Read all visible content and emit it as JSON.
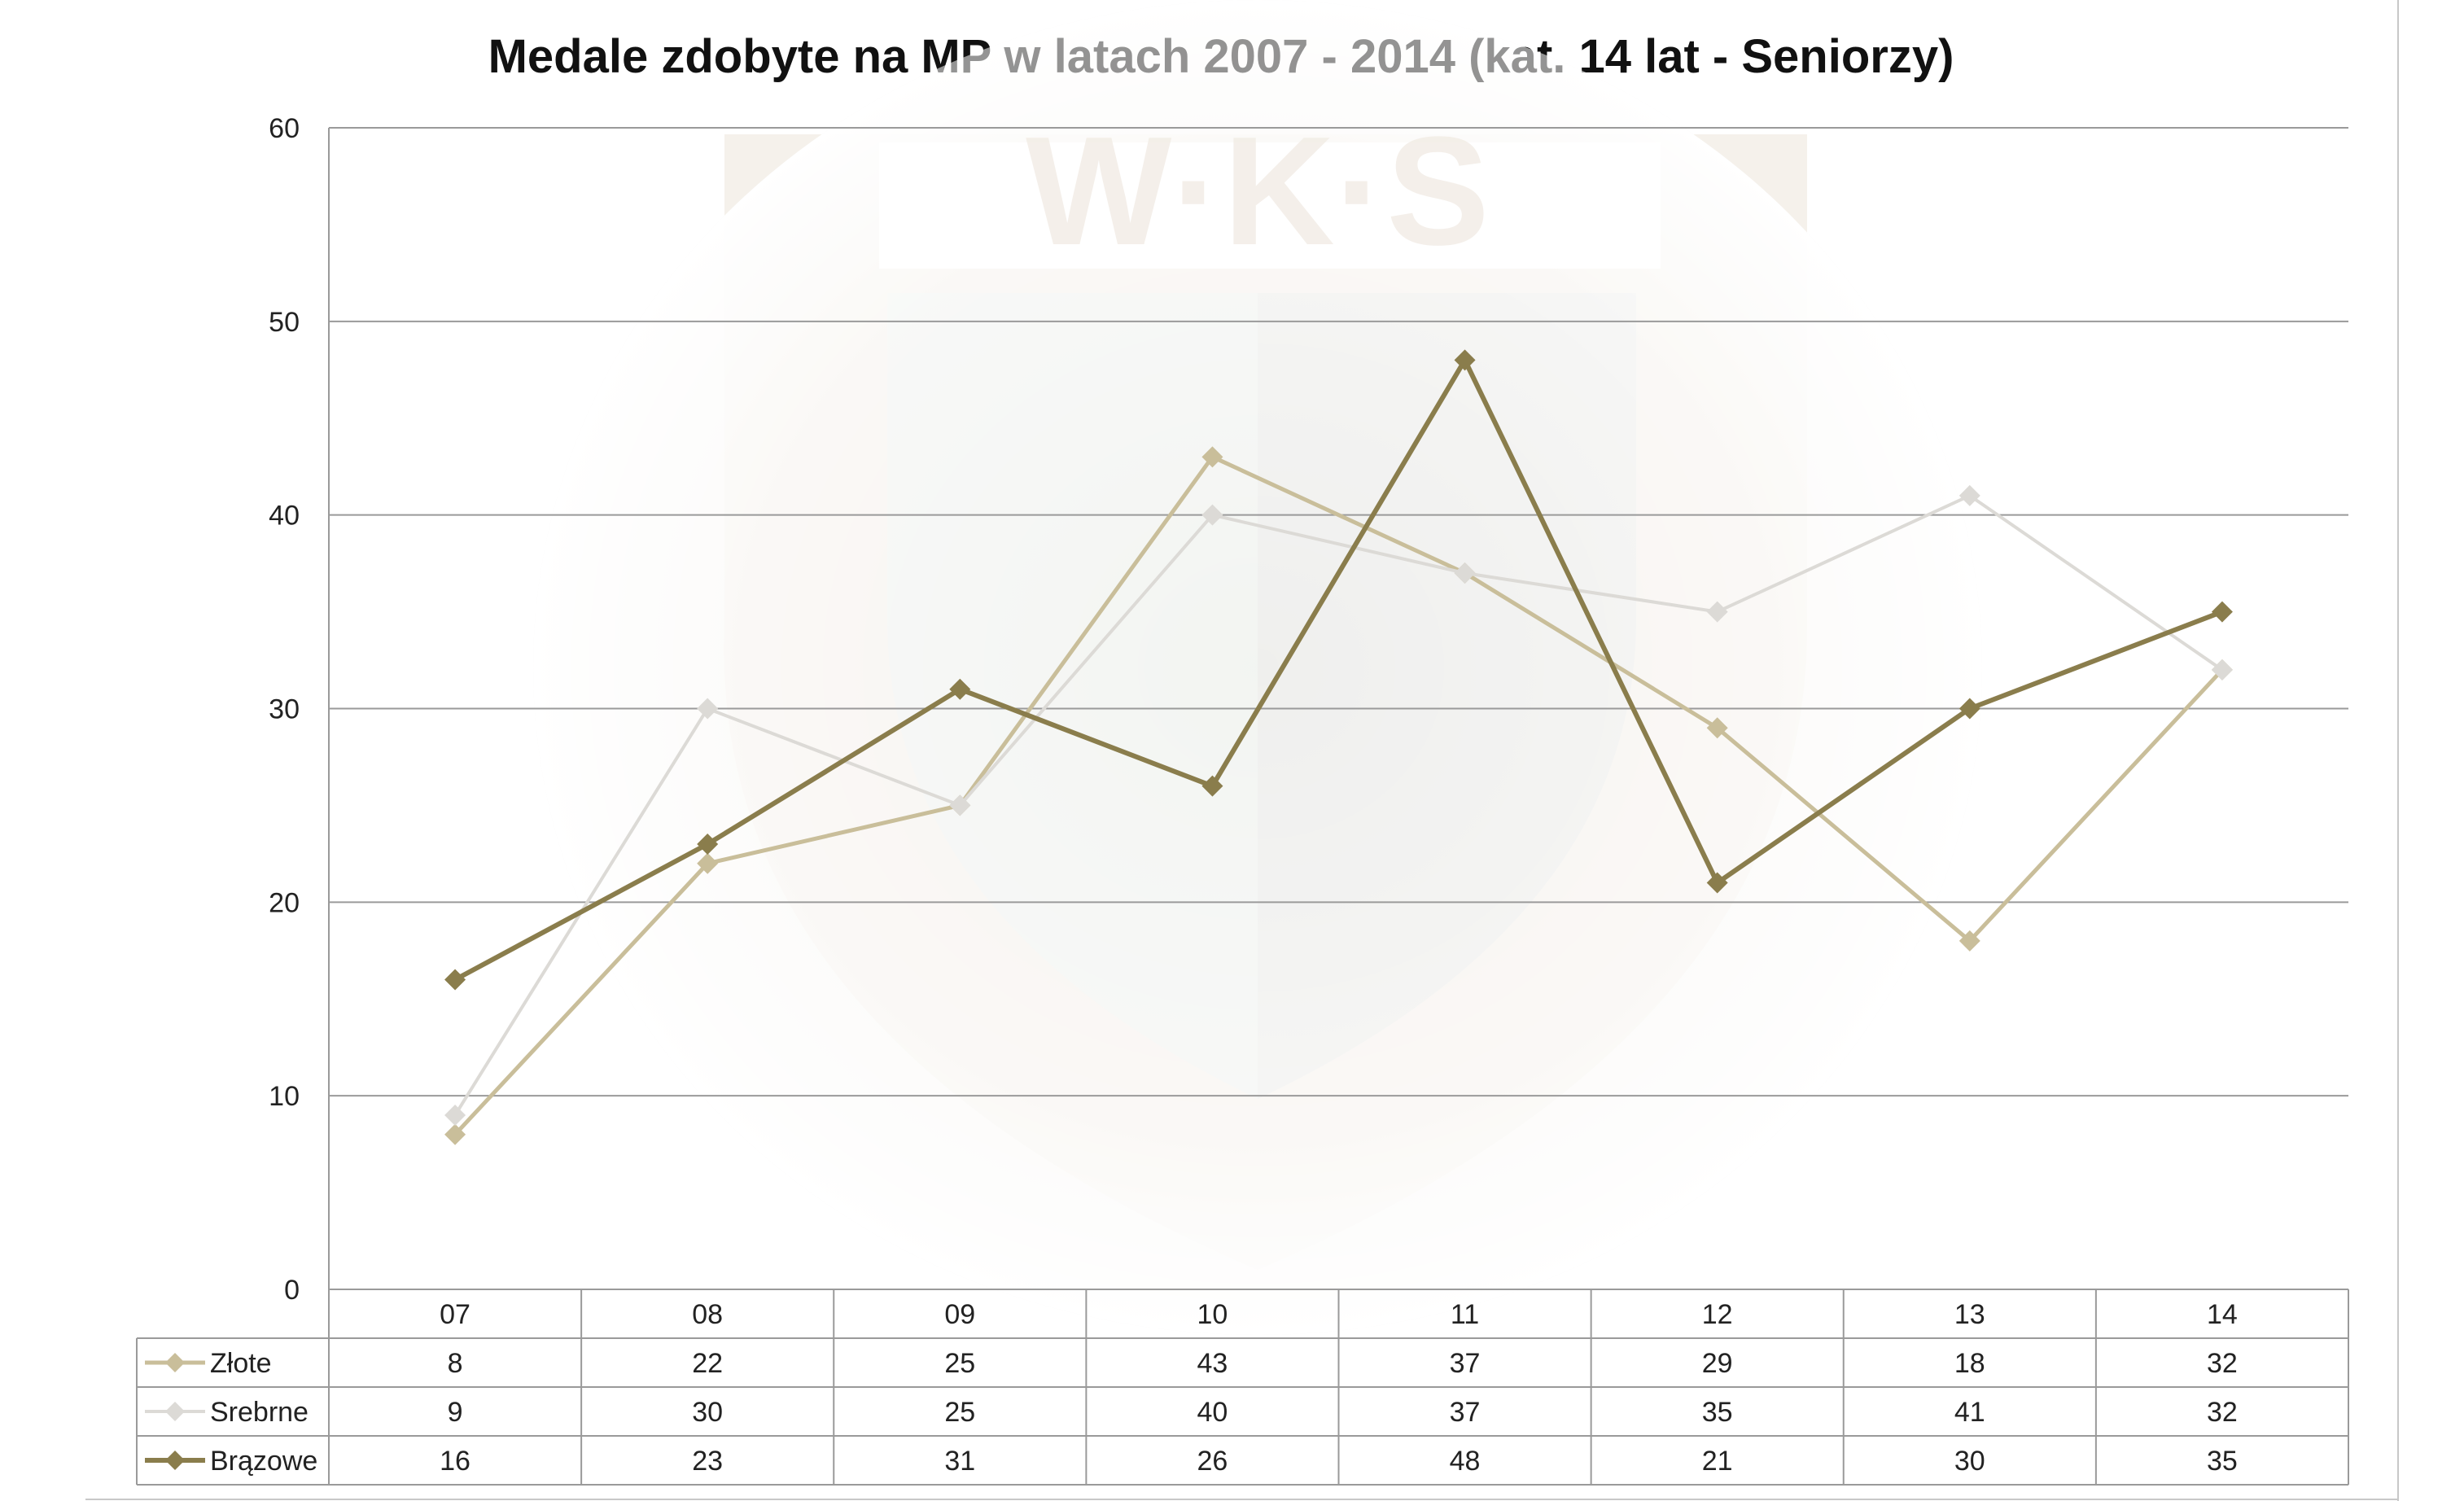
{
  "chart_data": {
    "type": "line",
    "title": "Medale zdobyte na MP w latach 2007 - 2014 (kat. 14 lat - Seniorzy)",
    "xlabel": "",
    "ylabel": "",
    "categories": [
      "07",
      "08",
      "09",
      "10",
      "11",
      "12",
      "13",
      "14"
    ],
    "ylim": [
      0,
      60
    ],
    "yticks": [
      0,
      10,
      20,
      30,
      40,
      50,
      60
    ],
    "grid": true,
    "legend": "data-table",
    "series": [
      {
        "name": "Złote",
        "values": [
          8,
          22,
          25,
          43,
          37,
          29,
          18,
          32
        ],
        "color": "#c9be9a",
        "width": 5
      },
      {
        "name": "Srebrne",
        "values": [
          9,
          30,
          25,
          40,
          37,
          35,
          41,
          32
        ],
        "color": "#dcdad6",
        "width": 4
      },
      {
        "name": "Brązowe",
        "values": [
          16,
          23,
          31,
          26,
          48,
          21,
          30,
          35
        ],
        "color": "#8a7d4c",
        "width": 6
      }
    ],
    "watermark": "W·K·S"
  }
}
